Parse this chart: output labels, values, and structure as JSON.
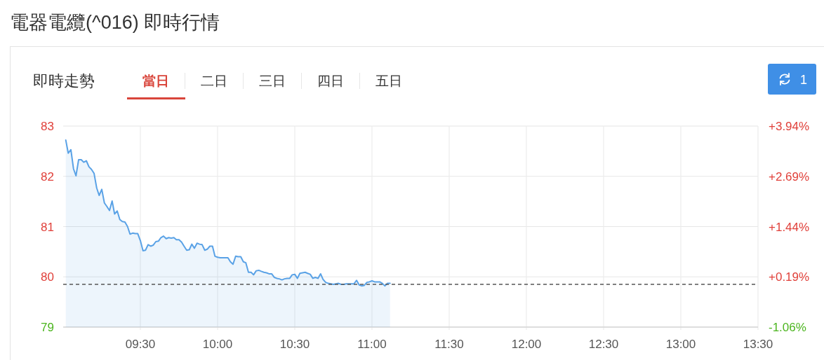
{
  "chart_data": {
    "type": "area",
    "title": "電器電纜(^016) 即時行情",
    "subtitle": "即時走勢",
    "annotations": [
      "當日",
      "二日",
      "三日",
      "四日",
      "五日",
      "1"
    ],
    "x": [
      9.017,
      9.033,
      9.05,
      9.067,
      9.083,
      9.1,
      9.117,
      9.133,
      9.15,
      9.167,
      9.183,
      9.2,
      9.217,
      9.233,
      9.25,
      9.267,
      9.283,
      9.3,
      9.317,
      9.333,
      9.35,
      9.367,
      9.383,
      9.4,
      9.417,
      9.433,
      9.45,
      9.467,
      9.483,
      9.5,
      9.517,
      9.533,
      9.55,
      9.567,
      9.583,
      9.6,
      9.617,
      9.633,
      9.65,
      9.667,
      9.683,
      9.7,
      9.717,
      9.733,
      9.75,
      9.767,
      9.783,
      9.8,
      9.817,
      9.833,
      9.85,
      9.867,
      9.883,
      9.9,
      9.917,
      9.933,
      9.95,
      9.967,
      9.983,
      10,
      10.017,
      10.033,
      10.05,
      10.067,
      10.083,
      10.1,
      10.117,
      10.133,
      10.15,
      10.167,
      10.183,
      10.2,
      10.217,
      10.233,
      10.25,
      10.267,
      10.283,
      10.3,
      10.317,
      10.333,
      10.35,
      10.367,
      10.383,
      10.4,
      10.417,
      10.433,
      10.45,
      10.467,
      10.483,
      10.5,
      10.517,
      10.533,
      10.55,
      10.567,
      10.583,
      10.6,
      10.617,
      10.633,
      10.65,
      10.667,
      10.683,
      10.7,
      10.717,
      10.733,
      10.75,
      10.767,
      10.783,
      10.8,
      10.817,
      10.833,
      10.85,
      10.867,
      10.883,
      10.9,
      10.917,
      10.933,
      10.95,
      10.967,
      10.983,
      11,
      11.017,
      11.033,
      11.05,
      11.067,
      11.083,
      11.1,
      11.117
    ],
    "series": [
      {
        "color": "#5aa2e6",
        "values": [
          82.72,
          82.46,
          82.53,
          82.15,
          82.01,
          82.33,
          82.33,
          82.28,
          82.31,
          82.19,
          82.14,
          82.06,
          81.77,
          81.62,
          81.74,
          81.47,
          81.4,
          81.32,
          81.51,
          81.25,
          81.31,
          81.14,
          81.1,
          81.09,
          81.0,
          80.85,
          80.87,
          80.86,
          80.86,
          80.72,
          80.52,
          80.53,
          80.64,
          80.61,
          80.63,
          80.7,
          80.71,
          80.78,
          80.81,
          80.76,
          80.78,
          80.77,
          80.78,
          80.74,
          80.74,
          80.69,
          80.61,
          80.53,
          80.54,
          80.65,
          80.57,
          80.67,
          80.65,
          80.64,
          80.53,
          80.55,
          80.61,
          80.61,
          80.41,
          80.39,
          80.38,
          80.38,
          80.38,
          80.38,
          80.3,
          80.25,
          80.41,
          80.4,
          80.4,
          80.3,
          80.28,
          80.09,
          80.09,
          80.04,
          80.12,
          80.13,
          80.11,
          80.09,
          80.08,
          80.06,
          80.06,
          79.99,
          79.97,
          79.96,
          79.94,
          79.96,
          79.97,
          79.97,
          80.04,
          80.05,
          79.97,
          80.07,
          80.08,
          80.09,
          80.07,
          80.05,
          79.97,
          79.99,
          79.97,
          80.06,
          79.95,
          79.89,
          79.87,
          79.86,
          79.85,
          79.86,
          79.87,
          79.85,
          79.85,
          79.86,
          79.86,
          79.86,
          79.86,
          79.93,
          79.84,
          79.82,
          79.83,
          79.89,
          79.9,
          79.92,
          79.9,
          79.9,
          79.9,
          79.87,
          79.82,
          79.87,
          79.87
        ]
      }
    ],
    "xlim": [
      9,
      13.5
    ],
    "xticks": [
      {
        "value": 9.5,
        "label": "09:30"
      },
      {
        "value": 10,
        "label": "10:00"
      },
      {
        "value": 10.5,
        "label": "10:30"
      },
      {
        "value": 11,
        "label": "11:00"
      },
      {
        "value": 11.5,
        "label": "11:30"
      },
      {
        "value": 12,
        "label": "12:00"
      },
      {
        "value": 12.5,
        "label": "12:30"
      },
      {
        "value": 13,
        "label": "13:00"
      },
      {
        "value": 13.5,
        "label": "13:30"
      }
    ],
    "ylim": [
      79,
      83
    ],
    "yticks": [
      79,
      80,
      81,
      82,
      83
    ],
    "y2lim": [
      -1.06,
      3.94
    ],
    "y2ticks": [
      {
        "value": -1.06,
        "label": "-1.06%"
      },
      {
        "value": 0.19,
        "label": "+0.19%"
      },
      {
        "value": 1.44,
        "label": "+1.44%"
      },
      {
        "value": 2.69,
        "label": "+2.69%"
      },
      {
        "value": 3.94,
        "label": "+3.94%"
      }
    ],
    "ref_lines": [
      {
        "axis": "y",
        "value": 79.85,
        "color": "#555555",
        "line_style": "dashed"
      }
    ],
    "grid": true
  }
}
